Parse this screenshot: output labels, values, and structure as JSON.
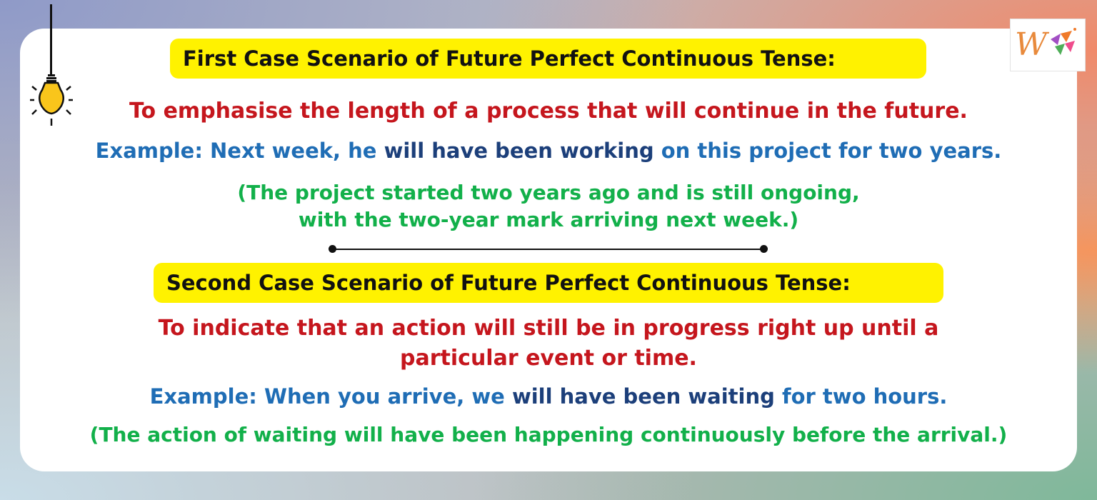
{
  "case1": {
    "heading": "First Case Scenario of Future Perfect Continuous Tense:",
    "definition": "To emphasise the length of a process that will continue in the future.",
    "example": {
      "prefix": "Example: Next week, he ",
      "verb": "will have been working",
      "suffix": " on this project for two years."
    },
    "note_line1": "(The project started two years ago and is still ongoing,",
    "note_line2": "with the two-year mark arriving next week.)"
  },
  "case2": {
    "heading": "Second Case Scenario of Future Perfect Continuous Tense:",
    "definition_line1": "To indicate that an action will still be in progress right up until a",
    "definition_line2": "particular event or time.",
    "example": {
      "prefix": "Example: When you arrive, we ",
      "verb": "will have been waiting",
      "suffix": " for two hours."
    },
    "note": "(The action of waiting will have been happening continuously before the arrival.)"
  },
  "logo": {
    "icon": "w-logo-icon"
  },
  "decor": {
    "icon": "lightbulb-icon"
  },
  "colors": {
    "heading_bg": "#fff200",
    "definition": "#c5161d",
    "example": "#1f6db5",
    "example_verb": "#1c3f7a",
    "note": "#12b04a"
  }
}
